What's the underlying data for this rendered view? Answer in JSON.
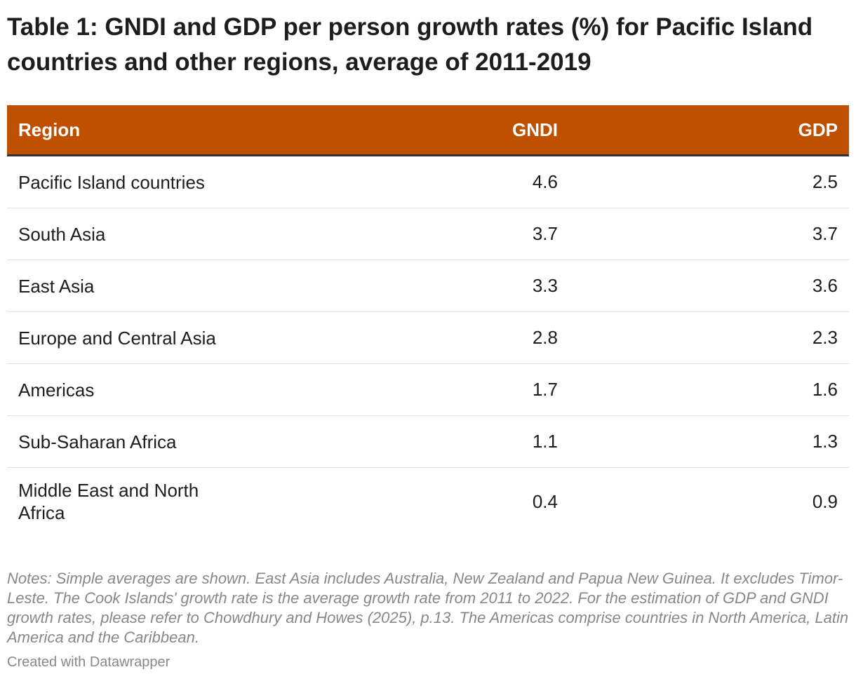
{
  "title": "Table 1: GNDI and GDP per person growth rates (%) for Pacific Island countries and other regions, average of 2011-2019",
  "colors": {
    "header_bg": "#bf5000",
    "header_text": "#ffffff",
    "row_divider": "#e3e3e3",
    "notes_text": "#888888"
  },
  "chart_data": {
    "type": "table",
    "columns": [
      "Region",
      "GNDI",
      "GDP"
    ],
    "rows": [
      {
        "region": "Pacific Island countries",
        "gndi": "4.6",
        "gdp": "2.5"
      },
      {
        "region": "South Asia",
        "gndi": "3.7",
        "gdp": "3.7"
      },
      {
        "region": "East Asia",
        "gndi": "3.3",
        "gdp": "3.6"
      },
      {
        "region": "Europe and Central Asia",
        "gndi": "2.8",
        "gdp": "2.3"
      },
      {
        "region": "Americas",
        "gndi": "1.7",
        "gdp": "1.6"
      },
      {
        "region": "Sub-Saharan Africa",
        "gndi": "1.1",
        "gdp": "1.3"
      },
      {
        "region": "Middle East and North Africa",
        "gndi": "0.4",
        "gdp": "0.9"
      }
    ]
  },
  "notes": "Notes: Simple averages are shown. East Asia includes Australia, New Zealand and Papua New Guinea. It excludes Timor-Leste. The Cook Islands' growth rate is the average growth rate from 2011 to 2022. For the estimation of GDP and GNDI growth rates, please refer to Chowdhury and Howes (2025), p.13. The Americas comprise countries in North America, Latin America and the Caribbean.",
  "credit": "Created with Datawrapper"
}
